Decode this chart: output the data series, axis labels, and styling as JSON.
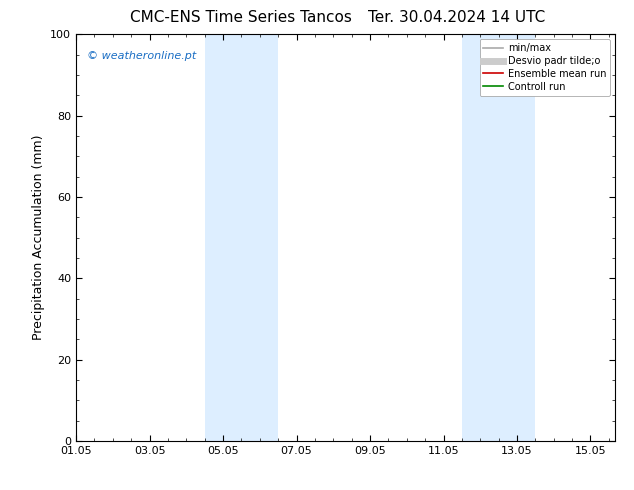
{
  "title_left": "CMC-ENS Time Series Tancos",
  "title_right": "Ter. 30.04.2024 14 UTC",
  "ylabel": "Precipitation Accumulation (mm)",
  "xtick_labels": [
    "01.05",
    "03.05",
    "05.05",
    "07.05",
    "09.05",
    "11.05",
    "13.05",
    "15.05"
  ],
  "xtick_positions": [
    0,
    2,
    4,
    6,
    8,
    10,
    12,
    14
  ],
  "xlim": [
    0,
    14.667
  ],
  "ylim": [
    0,
    100
  ],
  "ytick_positions": [
    0,
    20,
    40,
    60,
    80,
    100
  ],
  "shaded_bands": [
    {
      "x_start": 3.5,
      "x_end": 5.5
    },
    {
      "x_start": 10.5,
      "x_end": 12.5
    }
  ],
  "band_color": "#ddeeff",
  "watermark_text": "© weatheronline.pt",
  "watermark_color": "#1a6ec4",
  "legend_entries": [
    {
      "label": "min/max",
      "color": "#aaaaaa",
      "lw": 1.2,
      "style": "-"
    },
    {
      "label": "Desvio padr tilde;o",
      "color": "#cccccc",
      "lw": 5,
      "style": "-"
    },
    {
      "label": "Ensemble mean run",
      "color": "#cc0000",
      "lw": 1.2,
      "style": "-"
    },
    {
      "label": "Controll run",
      "color": "#008800",
      "lw": 1.2,
      "style": "-"
    }
  ],
  "bg_color": "#ffffff",
  "plot_bg_color": "#ffffff",
  "title_fontsize": 11,
  "tick_fontsize": 8,
  "label_fontsize": 9,
  "legend_fontsize": 7,
  "watermark_fontsize": 8
}
